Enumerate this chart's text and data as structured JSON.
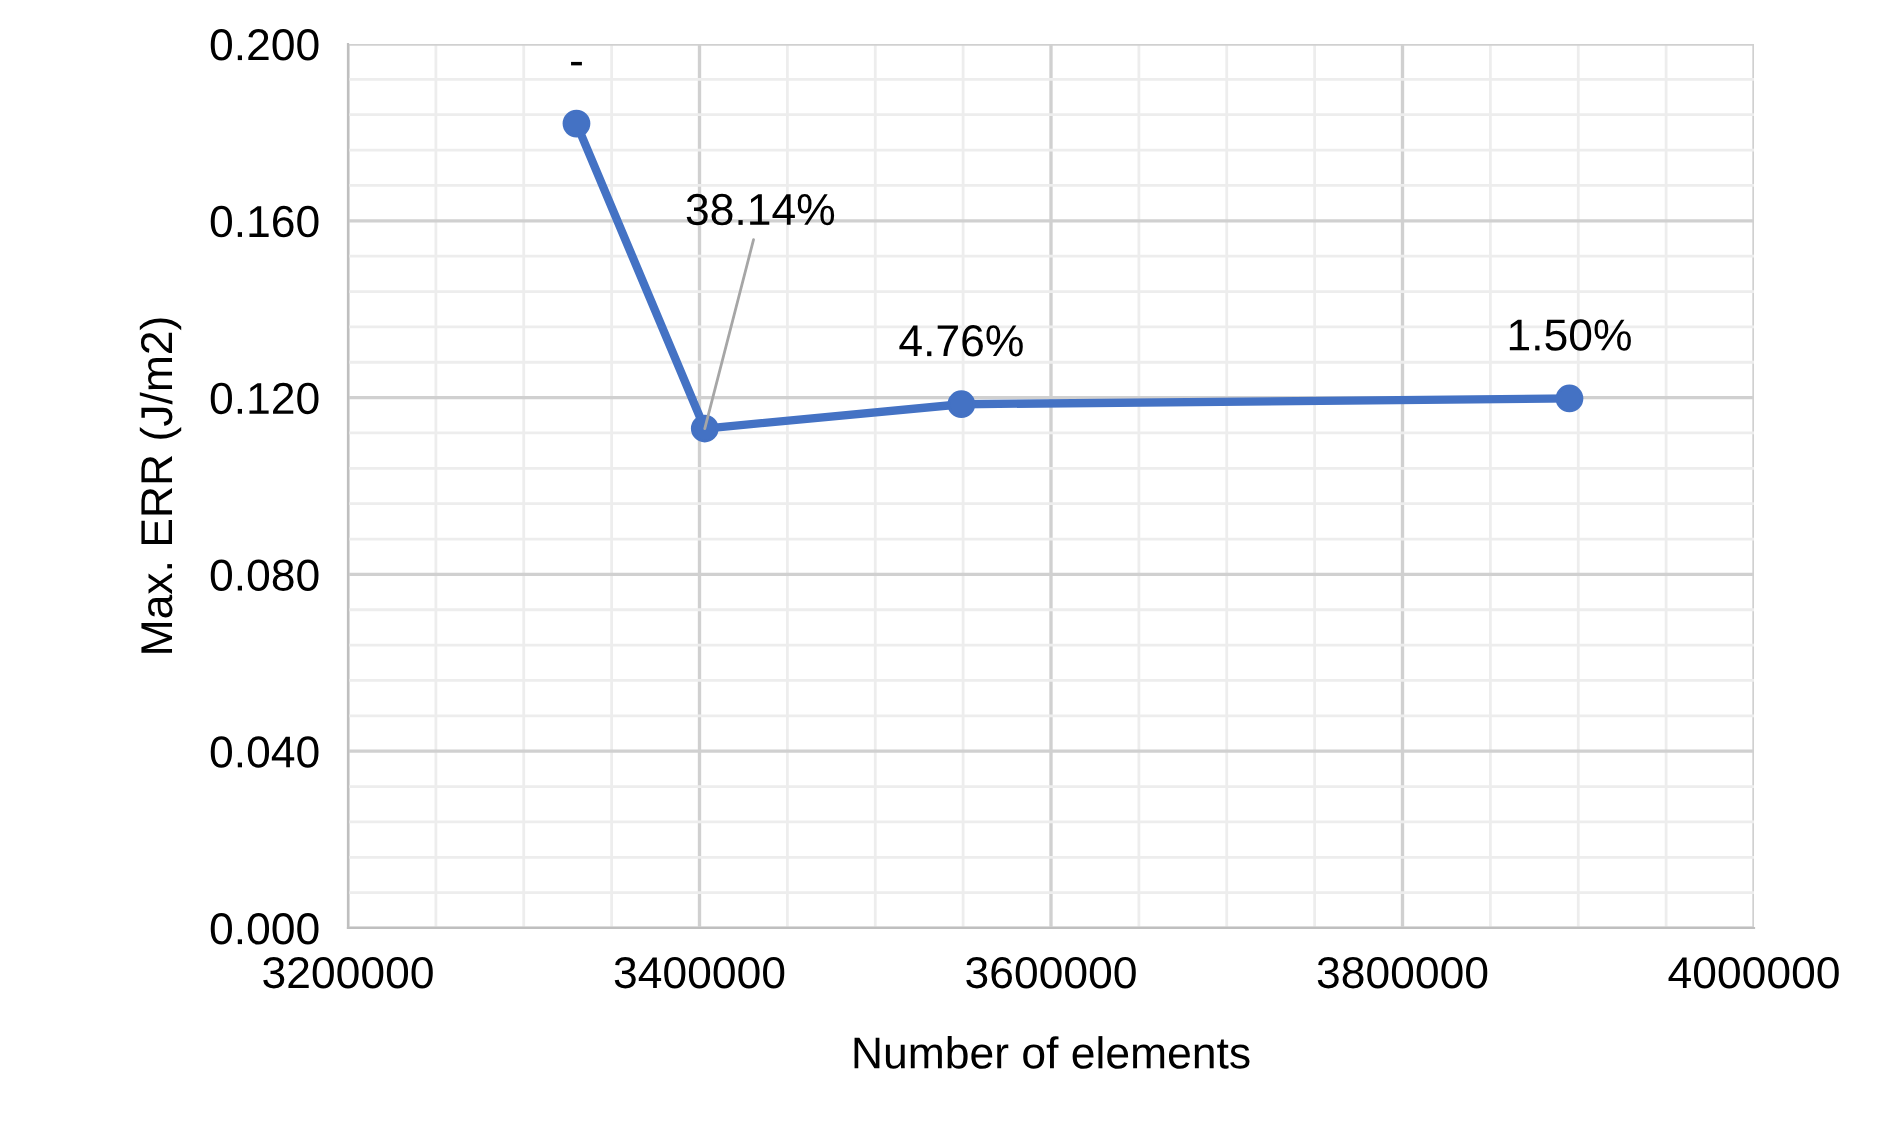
{
  "chart_data": {
    "type": "line",
    "xlabel": "Number of elements",
    "ylabel": "Max. ERR (J/m2)",
    "x": [
      3330000,
      3403000,
      3549000,
      3895000
    ],
    "series": [
      {
        "color": "#4472c4",
        "values": [
          0.182,
          0.113,
          0.1185,
          0.1198
        ]
      }
    ],
    "annotations": [
      {
        "text": "-",
        "x": 3330000,
        "y": 0.182
      },
      {
        "text": "38.14%",
        "x": 3403000,
        "y": 0.113
      },
      {
        "text": "4.76%",
        "x": 3549000,
        "y": 0.1185
      },
      {
        "text": "1.50%",
        "x": 3895000,
        "y": 0.1198
      }
    ],
    "xlim": [
      3200000,
      4000000
    ],
    "xticks": [
      3200000,
      3400000,
      3600000,
      3800000,
      4000000
    ],
    "ylim": [
      0,
      0.2
    ],
    "yticks": [
      {
        "value": 0,
        "label": "0.000"
      },
      {
        "value": 0.04,
        "label": "0.040"
      },
      {
        "value": 0.08,
        "label": "0.080"
      },
      {
        "value": 0.12,
        "label": "0.120"
      },
      {
        "value": 0.16,
        "label": "0.160"
      },
      {
        "value": 0.2,
        "label": "0.200"
      }
    ],
    "grid": true,
    "marker": "circle",
    "line_style": "solid"
  }
}
